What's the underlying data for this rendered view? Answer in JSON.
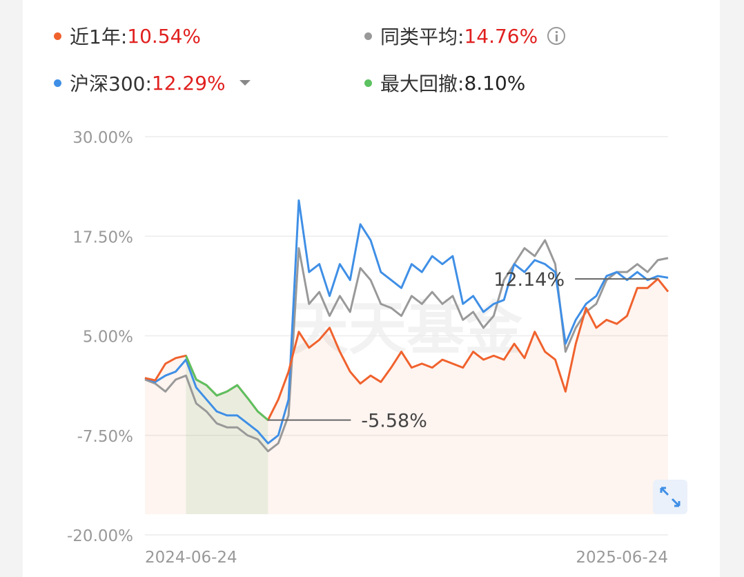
{
  "chart_data": {
    "type": "line",
    "series": [
      {
        "name": "近1年:",
        "color": "#f0622d",
        "summary": 10.54,
        "summary_label": "10.54%",
        "label_color": "#e0201f",
        "values": [
          -0.3,
          -0.6,
          1.5,
          2.2,
          2.5,
          -0.5,
          -1.2,
          -2.5,
          -2.0,
          -1.2,
          -2.8,
          -4.5,
          -5.58,
          -3.0,
          0.5,
          5.5,
          3.5,
          4.5,
          6.0,
          3.0,
          0.5,
          -1.0,
          0.0,
          -0.8,
          1.0,
          3.0,
          1.0,
          1.5,
          1.0,
          2.0,
          1.5,
          1.0,
          3.0,
          2.0,
          2.5,
          2.0,
          4.0,
          2.2,
          5.5,
          3.0,
          2.0,
          -2.0,
          4.0,
          8.5,
          6.0,
          7.0,
          6.5,
          7.5,
          11.0,
          11.0,
          12.14,
          10.54
        ]
      },
      {
        "name": "同类平均:",
        "color": "#999999",
        "summary": 14.76,
        "summary_label": "14.76%",
        "label_color": "#e0201f",
        "values": [
          -0.5,
          -1.0,
          -2.0,
          -0.5,
          0.0,
          -3.5,
          -4.5,
          -6.0,
          -6.5,
          -6.5,
          -7.5,
          -8.0,
          -9.5,
          -8.5,
          -5.0,
          16.0,
          9.0,
          10.5,
          7.5,
          10.0,
          8.0,
          13.5,
          12.0,
          9.0,
          8.5,
          7.5,
          10.0,
          9.0,
          10.5,
          9.0,
          10.0,
          7.0,
          8.0,
          6.0,
          7.5,
          12.0,
          14.0,
          16.0,
          15.0,
          17.0,
          14.0,
          3.0,
          6.0,
          8.0,
          9.0,
          12.0,
          13.0,
          13.0,
          14.0,
          13.0,
          14.5,
          14.76
        ]
      },
      {
        "name": "沪深300:",
        "color": "#3f8fe6",
        "summary": 12.29,
        "summary_label": "12.29%",
        "label_color": "#e0201f",
        "values": [
          -0.3,
          -0.8,
          0.0,
          0.5,
          2.0,
          -1.5,
          -3.0,
          -4.5,
          -5.0,
          -5.0,
          -6.0,
          -7.0,
          -8.5,
          -7.5,
          -3.0,
          22.0,
          13.0,
          14.0,
          10.0,
          14.0,
          12.0,
          19.0,
          17.0,
          13.0,
          12.0,
          11.0,
          14.0,
          13.0,
          15.0,
          14.0,
          15.0,
          9.0,
          10.0,
          8.0,
          9.0,
          9.5,
          14.0,
          13.0,
          14.5,
          14.0,
          13.0,
          4.0,
          7.0,
          9.0,
          10.0,
          12.5,
          13.0,
          12.0,
          13.0,
          12.0,
          12.5,
          12.29
        ]
      },
      {
        "name": "最大回撤:",
        "color": "#5cc160",
        "summary": 8.1,
        "summary_label": "8.10%",
        "label_color": "#222222",
        "values": [
          null,
          null,
          null,
          null,
          2.5,
          -0.5,
          -1.2,
          -2.5,
          -2.0,
          -1.2,
          -2.8,
          -4.5,
          -5.58,
          null,
          null,
          null,
          null,
          null,
          null,
          null,
          null,
          null,
          null,
          null,
          null,
          null,
          null,
          null,
          null,
          null,
          null,
          null,
          null,
          null,
          null,
          null,
          null,
          null,
          null,
          null,
          null,
          null,
          null,
          null,
          null,
          null,
          null,
          null,
          null,
          null,
          null,
          null
        ]
      }
    ],
    "categories": [
      "2024-06-24",
      null,
      null,
      null,
      null,
      null,
      null,
      null,
      null,
      null,
      null,
      null,
      null,
      null,
      null,
      null,
      null,
      null,
      null,
      null,
      null,
      null,
      null,
      null,
      null,
      null,
      null,
      null,
      null,
      null,
      null,
      null,
      null,
      null,
      null,
      null,
      null,
      null,
      null,
      null,
      null,
      null,
      null,
      null,
      null,
      null,
      null,
      null,
      null,
      null,
      null,
      "2025-06-24"
    ],
    "ylim": [
      -20,
      30
    ],
    "yticks": [
      {
        "value": -20,
        "label": "-20.00%"
      },
      {
        "value": -7.5,
        "label": "-7.50%"
      },
      {
        "value": 5,
        "label": "5.00%"
      },
      {
        "value": 17.5,
        "label": "17.50%"
      },
      {
        "value": 30,
        "label": "30.00%"
      }
    ],
    "grid": true,
    "annotations": [
      {
        "value": -5.58,
        "label": "-5.58%"
      },
      {
        "value": 12.14,
        "label": "12.14%"
      }
    ],
    "watermark": "天天基金"
  }
}
